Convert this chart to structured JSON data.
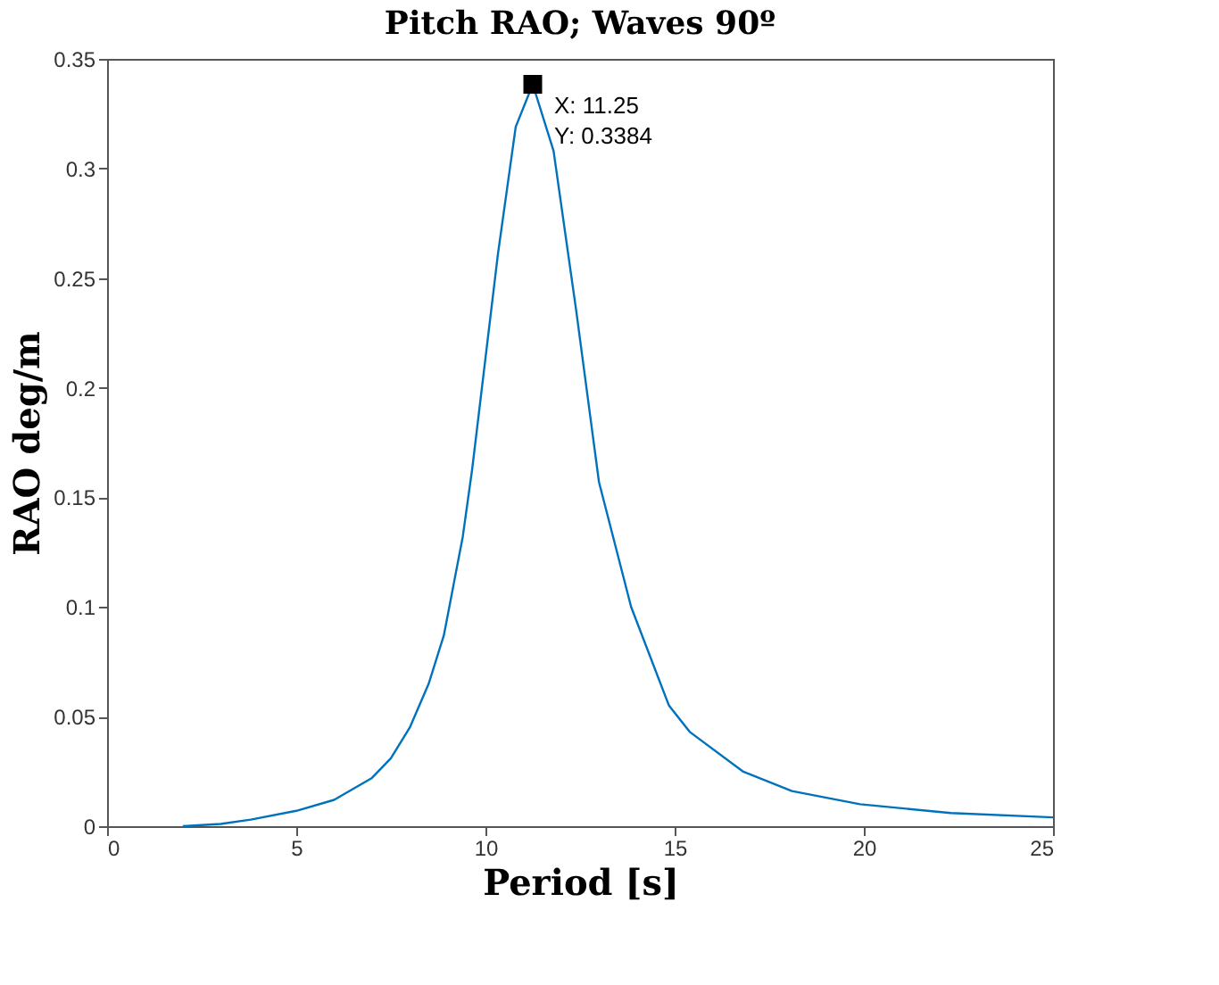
{
  "chart_data": {
    "type": "line",
    "title": "Pitch RAO; Waves 90º",
    "xlabel": "Period [s]",
    "ylabel": "RAO deg/m",
    "x": [
      2,
      3,
      3.8,
      5,
      6,
      7,
      7.5,
      8,
      8.5,
      8.9,
      9.4,
      9.65,
      10.33,
      10.8,
      11.25,
      11.8,
      12.4,
      13,
      13.85,
      14.85,
      15.4,
      16.8,
      18.1,
      19.9,
      22.3,
      25
    ],
    "series": [
      {
        "color": "#0072bd",
        "values": [
          0,
          0.001,
          0.003,
          0.007,
          0.012,
          0.022,
          0.031,
          0.045,
          0.065,
          0.087,
          0.132,
          0.163,
          0.261,
          0.319,
          0.3384,
          0.308,
          0.235,
          0.157,
          0.1,
          0.055,
          0.043,
          0.025,
          0.016,
          0.01,
          0.006,
          0.004
        ]
      }
    ],
    "xlim": [
      0,
      25
    ],
    "xticks": [
      0,
      5,
      10,
      15,
      20,
      25
    ],
    "ylim": [
      0,
      0.35
    ],
    "yticks": [
      0,
      0.05,
      0.1,
      0.15,
      0.2,
      0.25,
      0.3,
      0.35
    ],
    "grid": false,
    "marker": "none",
    "line_style": "solid",
    "annotations": [
      {
        "text": "X: 11.25\nY: 0.3384",
        "x": 11.25,
        "y": 0.3384
      }
    ]
  }
}
